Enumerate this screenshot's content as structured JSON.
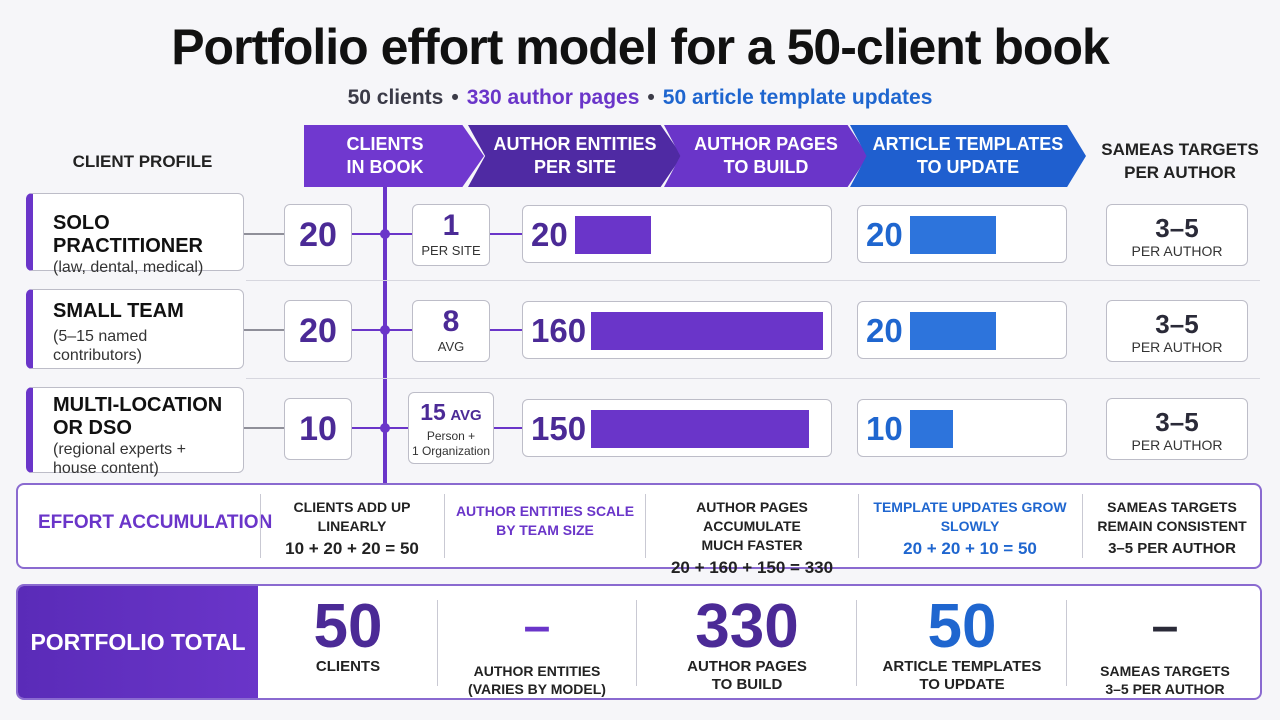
{
  "title": "Portfolio effort model for a 50-client book",
  "subtitle": {
    "clients": "50 clients",
    "author_pages": "330 author pages",
    "template_updates": "50 article template updates",
    "separator": "•"
  },
  "header": {
    "client_profile": "CLIENT PROFILE",
    "clients_in_book": [
      "CLIENTS",
      "IN BOOK"
    ],
    "author_entities": [
      "AUTHOR ENTITIES",
      "PER SITE"
    ],
    "author_pages": [
      "AUTHOR PAGES",
      "TO BUILD"
    ],
    "article_templates": [
      "ARTICLE TEMPLATES",
      "TO UPDATE"
    ],
    "sameas": [
      "SAMEAS TARGETS",
      "PER AUTHOR"
    ]
  },
  "rows": [
    {
      "name": "SOLO PRACTITIONER",
      "desc": [
        "(law, dental, medical)"
      ],
      "clients": "20",
      "entities_value": "1",
      "entities_unit": "PER SITE",
      "author_pages": 20,
      "templates": 20,
      "sameas_value": "3–5",
      "sameas_unit": "PER AUTHOR"
    },
    {
      "name": "SMALL TEAM",
      "desc": [
        "(5–15 named",
        "contributors)"
      ],
      "clients": "20",
      "entities_value": "8",
      "entities_unit": "AVG",
      "author_pages": 160,
      "templates": 20,
      "sameas_value": "3–5",
      "sameas_unit": "PER AUTHOR"
    },
    {
      "name": "MULTI-LOCATION OR DSO",
      "name_lines": [
        "MULTI-LOCATION",
        "OR DSO"
      ],
      "desc": [
        "(regional experts +",
        "house content)"
      ],
      "clients": "10",
      "entities_value": "15",
      "entities_value_suffix": "AVG",
      "entities_unit_lines": [
        "Person +",
        "1 Organization"
      ],
      "author_pages": 150,
      "templates": 10,
      "sameas_value": "3–5",
      "sameas_unit": "PER AUTHOR"
    }
  ],
  "accumulation": {
    "title": "EFFORT ACCUMULATION",
    "cols": [
      {
        "lines": [
          "CLIENTS ADD UP",
          "LINEARLY"
        ],
        "eq": "10 + 20 + 20 = 50",
        "color": "#222222"
      },
      {
        "lines": [
          "AUTHOR ENTITIES SCALE",
          "BY TEAM SIZE"
        ],
        "eq": "",
        "color": "#6a35c9"
      },
      {
        "lines": [
          "AUTHOR PAGES ACCUMULATE",
          "MUCH FASTER"
        ],
        "eq": "20 + 160 + 150 = 330",
        "color": "#222222"
      },
      {
        "lines": [
          "TEMPLATE UPDATES GROW",
          "SLOWLY"
        ],
        "eq": "20 + 20 + 10 = 50",
        "color": "#1f66cf"
      },
      {
        "lines": [
          "SAMEAS TARGETS",
          "REMAIN CONSISTENT"
        ],
        "eq": "3–5 PER AUTHOR",
        "color": "#222222"
      }
    ]
  },
  "total": {
    "label": "PORTFOLIO TOTAL",
    "cols": [
      {
        "value": "50",
        "unit": [
          "CLIENTS"
        ],
        "color": "#4b2a96"
      },
      {
        "value": "–",
        "unit": [
          "AUTHOR ENTITIES",
          "(VARIES BY MODEL)"
        ],
        "color": "#6a35c9"
      },
      {
        "value": "330",
        "unit": [
          "AUTHOR PAGES",
          "TO BUILD"
        ],
        "color": "#4b2a96"
      },
      {
        "value": "50",
        "unit": [
          "ARTICLE TEMPLATES",
          "TO UPDATE"
        ],
        "color": "#1f66cf"
      },
      {
        "value": "–",
        "unit": [
          "SAMEAS TARGETS",
          "3–5 PER AUTHOR"
        ],
        "color": "#2a2a38"
      }
    ]
  },
  "colors": {
    "purple": "#6a35c9",
    "dark_purple": "#4b2a96",
    "blue": "#1f66cf"
  }
}
